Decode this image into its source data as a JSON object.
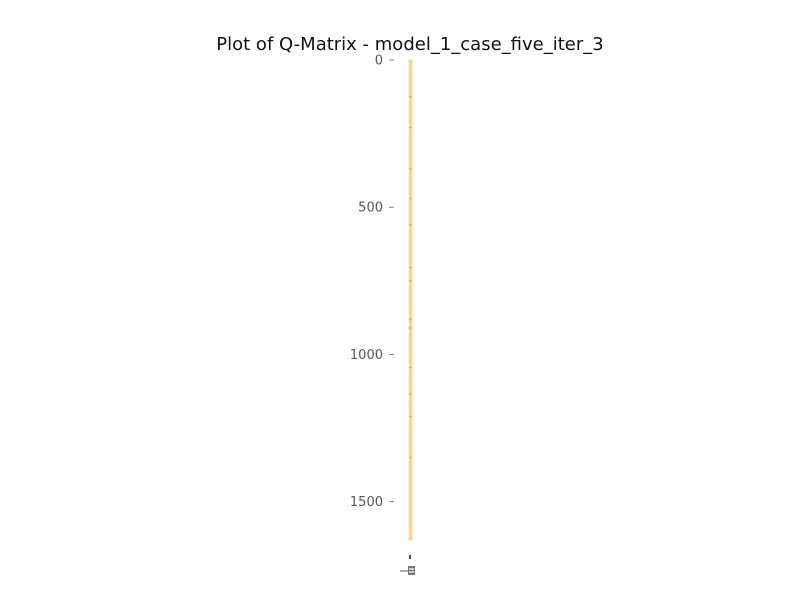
{
  "chart_data": {
    "type": "heatmap",
    "title": "Plot of Q-Matrix - model_1_case_five_iter_3",
    "xlabel": "",
    "ylabel": "",
    "y_ticks": [
      0,
      500,
      1000,
      1500
    ],
    "y_tick_labels": [
      "0",
      "500",
      "1000",
      "1500"
    ],
    "ylim": [
      1630,
      0
    ],
    "n_rows": 1630,
    "n_cols": 2,
    "grid": false,
    "colors": {
      "cell_fill": "#fbe4a6",
      "cell_edge": "#e9c063",
      "axis_text": "#555555"
    },
    "highlighted_rows": [
      125,
      230,
      370,
      470,
      560,
      705,
      750,
      880,
      910,
      1045,
      1135,
      1210,
      1350
    ]
  }
}
